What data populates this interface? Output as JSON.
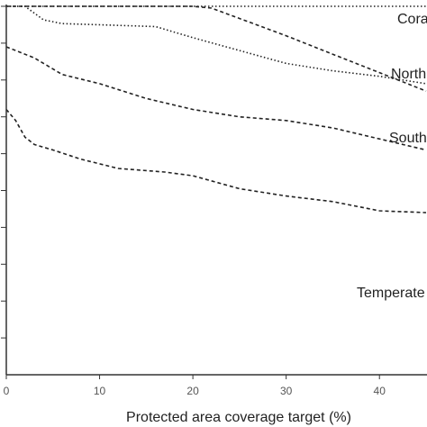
{
  "chart_data": {
    "type": "line",
    "title": "",
    "xlabel": "Protected area coverage target (%)",
    "ylabel": "",
    "xlim": [
      0,
      45
    ],
    "ylim": [
      0,
      100
    ],
    "x_ticks": [
      "0",
      "10",
      "20",
      "30",
      "40"
    ],
    "y_tick_count": 10,
    "grid": false,
    "series_labels": [
      "Cora",
      "North",
      "South",
      "Temperate"
    ],
    "series": [
      {
        "label_ref": 0,
        "style": "dotted",
        "x": [
          0,
          2,
          45
        ],
        "y": [
          100,
          100,
          100
        ]
      },
      {
        "label_ref": 1,
        "style": "dashed",
        "x": [
          0,
          20,
          22,
          30,
          35,
          40,
          45
        ],
        "y": [
          100,
          100,
          99.5,
          92,
          87,
          82,
          77
        ]
      },
      {
        "label_ref": 1,
        "style": "dotted",
        "x": [
          0,
          2,
          4,
          6,
          10,
          16,
          20,
          25,
          30,
          35,
          40,
          45
        ],
        "y": [
          100,
          100,
          96.3,
          95.3,
          95,
          94.5,
          91.5,
          88,
          84.5,
          82.5,
          81,
          79
        ]
      },
      {
        "label_ref": 2,
        "style": "dashed",
        "x": [
          0,
          1,
          3,
          6,
          10,
          15,
          20,
          25,
          30,
          35,
          40,
          45
        ],
        "y": [
          89,
          88,
          86,
          81.5,
          79,
          75,
          72,
          70,
          69,
          67,
          64,
          61
        ]
      },
      {
        "label_ref": 3,
        "style": "dashed",
        "x": [
          0,
          1,
          2,
          3,
          5,
          8,
          12,
          17,
          20,
          25,
          30,
          35,
          40,
          45
        ],
        "y": [
          72,
          69,
          64.5,
          62.5,
          61,
          58.5,
          56,
          55,
          54,
          50.5,
          48.5,
          47,
          44.5,
          44
        ]
      }
    ]
  }
}
